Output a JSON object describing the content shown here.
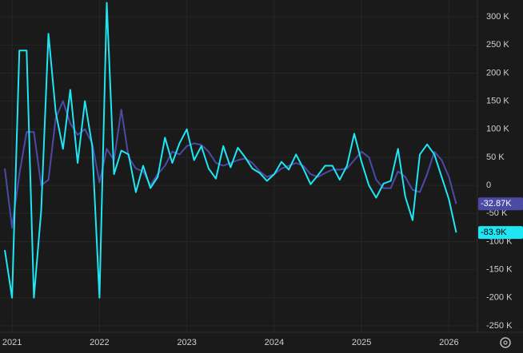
{
  "chart_data": {
    "type": "line",
    "categories": [
      null,
      "2021",
      null,
      null,
      null,
      null,
      null,
      null,
      null,
      null,
      null,
      null,
      null,
      "2022",
      null,
      null,
      null,
      null,
      null,
      null,
      null,
      null,
      null,
      null,
      null,
      "2023",
      null,
      null,
      null,
      null,
      null,
      null,
      null,
      null,
      null,
      null,
      null,
      "2024",
      null,
      null,
      null,
      null,
      null,
      null,
      null,
      null,
      null,
      null,
      null,
      "2025",
      null,
      null,
      null,
      null,
      null,
      null,
      null,
      null,
      null,
      null,
      null,
      "2026",
      null
    ],
    "series": [
      {
        "color": "#4b4ba6",
        "values": [
          30000,
          -75000,
          20000,
          95000,
          95000,
          0,
          10000,
          120000,
          150000,
          110000,
          90000,
          100000,
          75000,
          5000,
          65000,
          45000,
          135000,
          50000,
          30000,
          25000,
          0,
          20000,
          35000,
          60000,
          55000,
          70000,
          75000,
          72000,
          60000,
          40000,
          35000,
          40000,
          45000,
          48000,
          40000,
          25000,
          15000,
          20000,
          30000,
          35000,
          40000,
          35000,
          20000,
          15000,
          22000,
          28000,
          28000,
          30000,
          45000,
          60000,
          50000,
          10000,
          -5000,
          -5000,
          25000,
          15000,
          -8000,
          -12000,
          20000,
          60000,
          45000,
          15000,
          -32870
        ],
        "value_labels": [
          null,
          null,
          null,
          null,
          null,
          null,
          null,
          null,
          null,
          null,
          null,
          null,
          null,
          null,
          null,
          null,
          null,
          null,
          null,
          null,
          null,
          null,
          null,
          null,
          null,
          null,
          null,
          null,
          null,
          null,
          null,
          null,
          null,
          null,
          null,
          null,
          null,
          null,
          null,
          null,
          null,
          null,
          null,
          null,
          null,
          null,
          null,
          null,
          null,
          null,
          null,
          null,
          null,
          null,
          null,
          null,
          null,
          null,
          null,
          null,
          null,
          null,
          "-32.87K"
        ]
      },
      {
        "color": "#1ee6f2",
        "values": [
          -115000,
          -200000,
          240000,
          240000,
          -200000,
          -45000,
          270000,
          130000,
          65000,
          170000,
          40000,
          150000,
          70000,
          -200000,
          325000,
          20000,
          62000,
          55000,
          -12000,
          35000,
          -5000,
          15000,
          85000,
          40000,
          75000,
          100000,
          45000,
          70000,
          30000,
          12000,
          70000,
          32000,
          67000,
          50000,
          30000,
          22000,
          8000,
          20000,
          42000,
          28000,
          55000,
          30000,
          2000,
          18000,
          35000,
          35000,
          10000,
          35000,
          92000,
          42000,
          0,
          -22000,
          3000,
          8000,
          65000,
          -20000,
          -62000,
          55000,
          73000,
          55000,
          15000,
          -25000,
          -83900
        ],
        "value_labels": [
          null,
          null,
          null,
          null,
          null,
          null,
          null,
          null,
          null,
          null,
          null,
          null,
          null,
          null,
          null,
          null,
          null,
          null,
          null,
          null,
          null,
          null,
          null,
          null,
          null,
          null,
          null,
          null,
          null,
          null,
          null,
          null,
          null,
          null,
          null,
          null,
          null,
          null,
          null,
          null,
          null,
          null,
          null,
          null,
          null,
          null,
          null,
          null,
          null,
          null,
          null,
          null,
          null,
          null,
          null,
          null,
          null,
          null,
          null,
          null,
          null,
          null,
          "-83.9K"
        ]
      }
    ],
    "ylim": [
      -260000,
      330000
    ],
    "yticks": [
      {
        "value": 300000,
        "label": "300 K"
      },
      {
        "value": 250000,
        "label": "250 K"
      },
      {
        "value": 200000,
        "label": "200 K"
      },
      {
        "value": 150000,
        "label": "150 K"
      },
      {
        "value": 100000,
        "label": "100 K"
      },
      {
        "value": 50000,
        "label": "50 K"
      },
      0,
      {
        "value": -50000,
        "label": "-50 K"
      },
      {
        "value": -100000,
        "label": "-100 K"
      },
      {
        "value": -150000,
        "label": "-150 K"
      },
      {
        "value": -200000,
        "label": "-200 K"
      },
      {
        "value": -250000,
        "label": "-250 K"
      }
    ],
    "grid": true
  }
}
